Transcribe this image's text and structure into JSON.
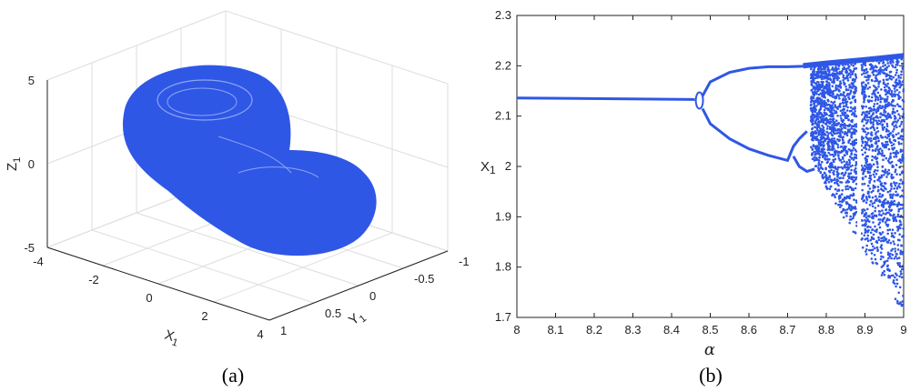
{
  "colors": {
    "series": "#2f57e6",
    "axis": "#222222",
    "grid": "#dddddd"
  },
  "chart_data": [
    {
      "panel": "a",
      "type": "scatter",
      "caption": "(a)",
      "title": "",
      "xlabel": "X",
      "xlabel_sub": "1",
      "ylabel": "Y",
      "ylabel_sub": "1",
      "zlabel": "Z",
      "zlabel_sub": "1",
      "xlim": [
        -4,
        4
      ],
      "ylim": [
        -1,
        1
      ],
      "zlim": [
        -5,
        5
      ],
      "x_ticks": [
        -4,
        -2,
        0,
        2,
        4
      ],
      "y_ticks": [
        -1,
        -0.5,
        0,
        0.5,
        1
      ],
      "z_ticks": [
        -5,
        0,
        5
      ],
      "grid": true,
      "description_shape": "double-scroll chaotic attractor filled region"
    },
    {
      "panel": "b",
      "type": "scatter",
      "caption": "(b)",
      "title": "",
      "xlabel": "α",
      "ylabel": "X",
      "ylabel_sub": "1",
      "xlim": [
        8,
        9
      ],
      "ylim": [
        1.7,
        2.3
      ],
      "x_ticks": [
        8,
        8.1,
        8.2,
        8.3,
        8.4,
        8.5,
        8.6,
        8.7,
        8.8,
        8.9,
        9
      ],
      "y_ticks": [
        1.7,
        1.8,
        1.9,
        2,
        2.1,
        2.2,
        2.3
      ],
      "grid": false,
      "branches": {
        "fixed_point": {
          "alpha": [
            8.0,
            8.46
          ],
          "x": [
            2.136,
            2.133
          ]
        },
        "period2_upper": [
          [
            8.48,
            2.14
          ],
          [
            8.5,
            2.168
          ],
          [
            8.55,
            2.187
          ],
          [
            8.6,
            2.195
          ],
          [
            8.65,
            2.198
          ],
          [
            8.7,
            2.198
          ],
          [
            8.74,
            2.199
          ]
        ],
        "period2_lower": [
          [
            8.48,
            2.115
          ],
          [
            8.5,
            2.085
          ],
          [
            8.55,
            2.055
          ],
          [
            8.6,
            2.035
          ],
          [
            8.65,
            2.022
          ],
          [
            8.7,
            2.012
          ],
          [
            8.715,
            2.04
          ],
          [
            8.73,
            2.055
          ],
          [
            8.75,
            2.07
          ]
        ],
        "period4_lower": [
          [
            8.715,
            2.02
          ],
          [
            8.73,
            2.0
          ],
          [
            8.75,
            1.99
          ],
          [
            8.77,
            1.995
          ]
        ],
        "chaos_band": {
          "alpha": [
            8.76,
            9.0
          ],
          "upper": 2.22,
          "lower_at_9": 1.71
        },
        "window_alpha": 8.885
      }
    }
  ]
}
